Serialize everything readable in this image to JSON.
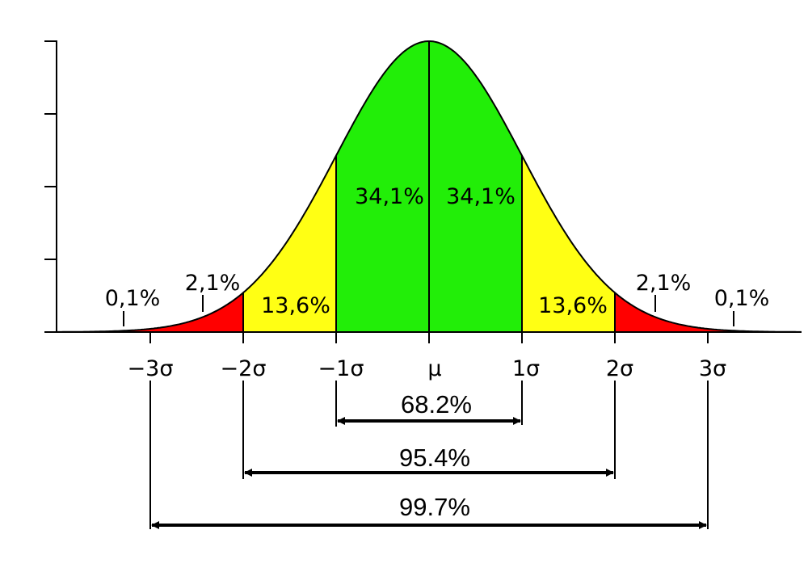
{
  "chart_data": {
    "type": "area",
    "title": "",
    "xlabel": "",
    "ylabel": "",
    "distribution": "normal",
    "x_ticks": [
      "−3σ",
      "−2σ",
      "−1σ",
      "μ",
      "1σ",
      "2σ",
      "3σ"
    ],
    "x_tick_values": [
      -3,
      -2,
      -1,
      0,
      1,
      2,
      3
    ],
    "y_ticks_count": 5,
    "y_tick_labels": [],
    "xlim": [
      -4,
      4
    ],
    "regions": [
      {
        "name": "beyond -3σ",
        "from": -4,
        "to": -3,
        "percent_label": "0,1%",
        "color": "#ff0000"
      },
      {
        "name": "-3σ to -2σ",
        "from": -3,
        "to": -2,
        "percent_label": "2,1%",
        "color": "#ff0000"
      },
      {
        "name": "-2σ to -1σ",
        "from": -2,
        "to": -1,
        "percent_label": "13,6%",
        "color": "#ffff14"
      },
      {
        "name": "-1σ to μ",
        "from": -1,
        "to": 0,
        "percent_label": "34,1%",
        "color": "#22ee08"
      },
      {
        "name": "μ to 1σ",
        "from": 0,
        "to": 1,
        "percent_label": "34,1%",
        "color": "#22ee08"
      },
      {
        "name": "1σ to 2σ",
        "from": 1,
        "to": 2,
        "percent_label": "13,6%",
        "color": "#ffff14"
      },
      {
        "name": "2σ to 3σ",
        "from": 2,
        "to": 3,
        "percent_label": "2,1%",
        "color": "#ff0000"
      },
      {
        "name": "beyond 3σ",
        "from": 3,
        "to": 4,
        "percent_label": "0,1%",
        "color": "#ff0000"
      }
    ],
    "ranges": [
      {
        "from": -1,
        "to": 1,
        "label": "68.2%"
      },
      {
        "from": -2,
        "to": 2,
        "label": "95.4%"
      },
      {
        "from": -3,
        "to": 3,
        "label": "99.7%"
      }
    ]
  },
  "labels": {
    "ticks": {
      "m3": "−3σ",
      "m2": "−2σ",
      "m1": "−1σ",
      "mu": "μ",
      "p1": "1σ",
      "p2": "2σ",
      "p3": "3σ"
    },
    "regions": {
      "left_tail": "0,1%",
      "left_red": "2,1%",
      "left_yellow": "13,6%",
      "left_green": "34,1%",
      "right_green": "34,1%",
      "right_yellow": "13,6%",
      "right_red": "2,1%",
      "right_tail": "0,1%"
    },
    "ranges": {
      "one_sigma": "68.2%",
      "two_sigma": "95.4%",
      "three_sigma": "99.7%"
    }
  },
  "colors": {
    "green": "#22ee08",
    "yellow": "#ffff14",
    "red": "#ff0000",
    "line": "#000000"
  }
}
